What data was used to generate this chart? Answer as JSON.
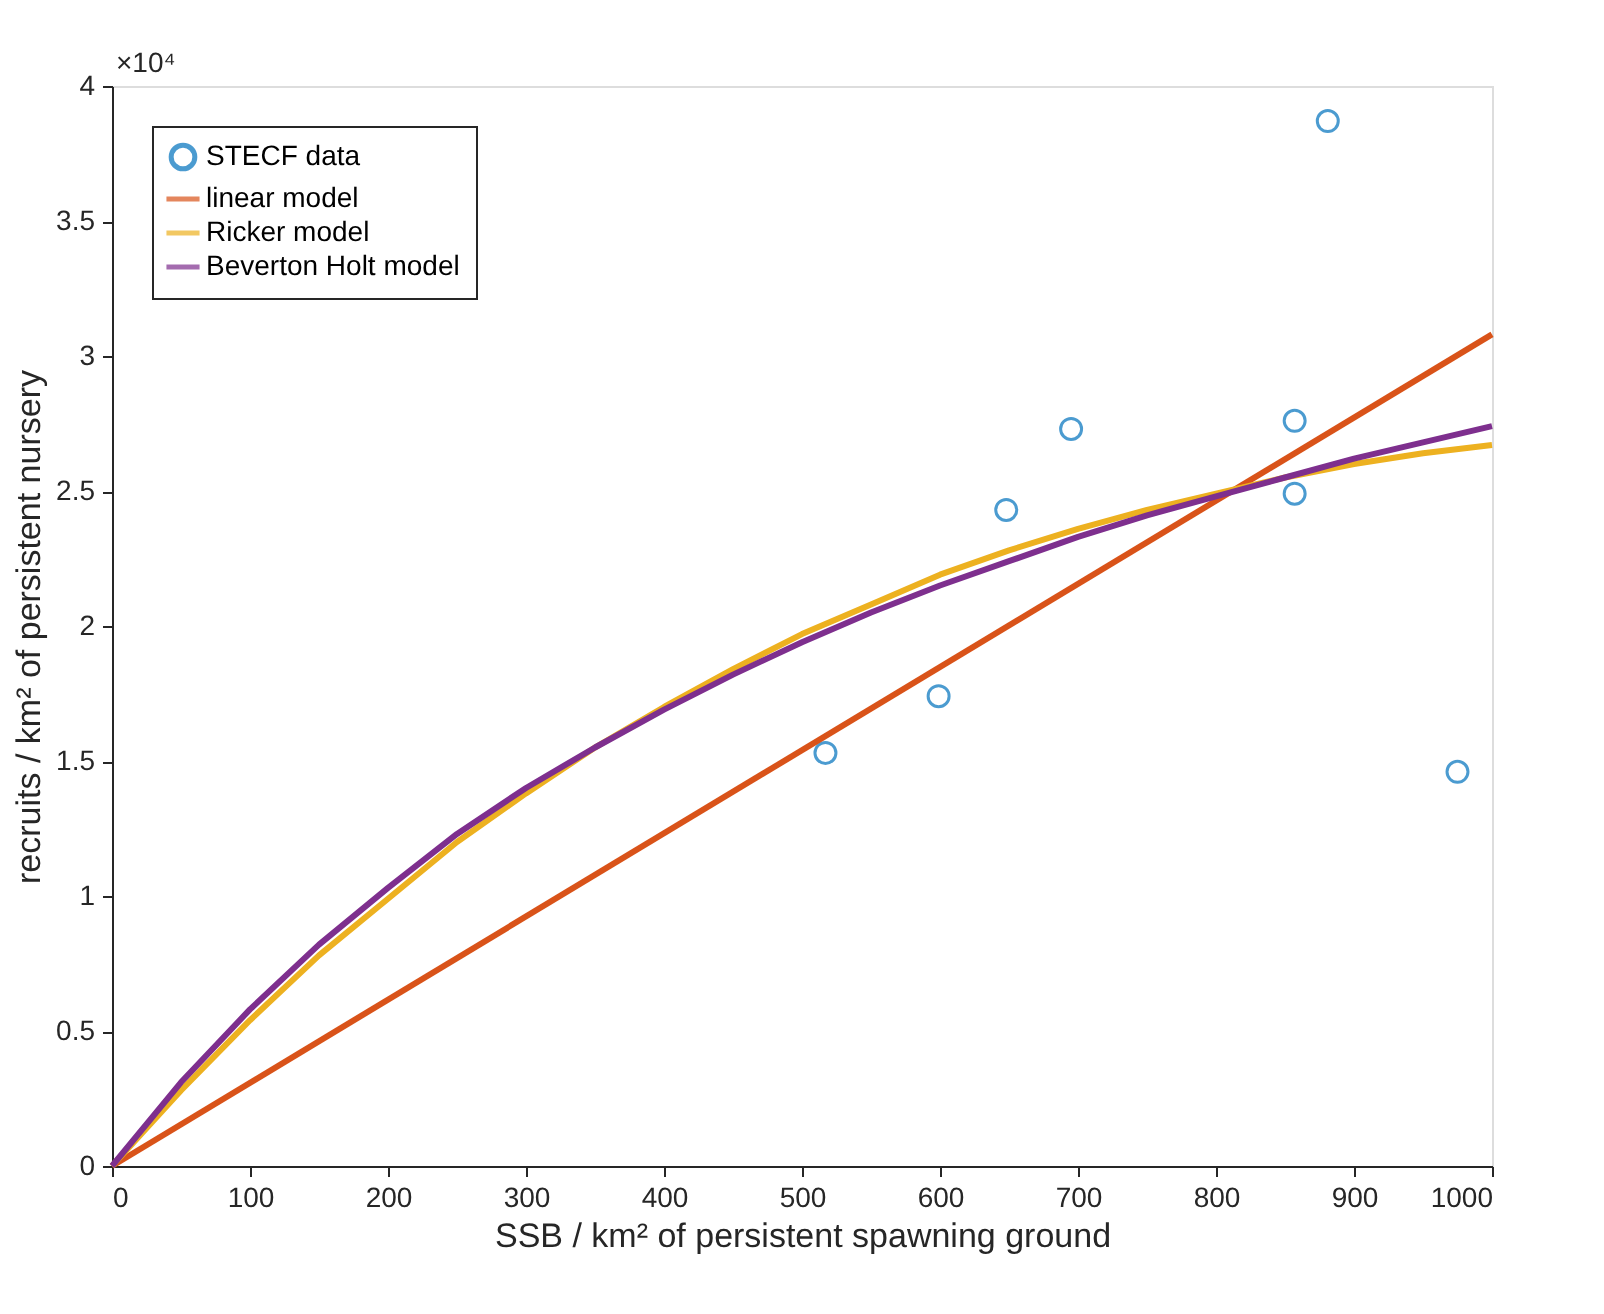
{
  "chart_data": {
    "type": "scatter",
    "xlabel": "SSB / km² of persistent spawning ground",
    "ylabel": "recruits / km² of persistent nursery",
    "annotations": [
      "×10⁴"
    ],
    "xlim": [
      0,
      1000
    ],
    "xticks": [
      0,
      100,
      200,
      300,
      400,
      500,
      600,
      700,
      800,
      900,
      1000
    ],
    "ylim": [
      0,
      4
    ],
    "yticks": [
      0,
      0.5,
      1,
      1.5,
      2,
      2.5,
      3,
      3.5,
      4
    ],
    "grid": false,
    "legend": "top left",
    "series": [
      {
        "name": "STECF data",
        "marker": "circle",
        "color": "#0072bd",
        "x": [
          517,
          599,
          648,
          695,
          857,
          857,
          881,
          975
        ],
        "values": [
          1.53,
          1.74,
          2.43,
          2.73,
          2.76,
          2.49,
          3.87,
          1.46
        ]
      },
      {
        "name": "linear model",
        "type": "line",
        "marker": "none",
        "color": "#d95319",
        "x": [
          0,
          1000
        ],
        "values": [
          0,
          3.08
        ]
      },
      {
        "name": "Ricker model",
        "type": "line",
        "marker": "none",
        "color": "#edb120",
        "x": [
          0,
          50,
          100,
          150,
          200,
          250,
          300,
          350,
          400,
          450,
          500,
          550,
          600,
          650,
          700,
          750,
          800,
          850,
          900,
          950,
          1000
        ],
        "values": [
          0,
          0.28,
          0.54,
          0.78,
          0.99,
          1.2,
          1.38,
          1.55,
          1.7,
          1.84,
          1.97,
          2.08,
          2.19,
          2.28,
          2.36,
          2.43,
          2.49,
          2.55,
          2.6,
          2.64,
          2.67
        ]
      },
      {
        "name": "Beverton Holt model",
        "type": "line",
        "marker": "none",
        "color": "#7e2f8e",
        "x": [
          0,
          50,
          100,
          150,
          200,
          250,
          300,
          350,
          400,
          450,
          500,
          550,
          600,
          650,
          700,
          750,
          800,
          850,
          900,
          950,
          1000
        ],
        "values": [
          0,
          0.31,
          0.58,
          0.82,
          1.03,
          1.23,
          1.4,
          1.55,
          1.69,
          1.82,
          1.94,
          2.05,
          2.15,
          2.24,
          2.33,
          2.41,
          2.48,
          2.55,
          2.62,
          2.68,
          2.74
        ]
      }
    ]
  }
}
